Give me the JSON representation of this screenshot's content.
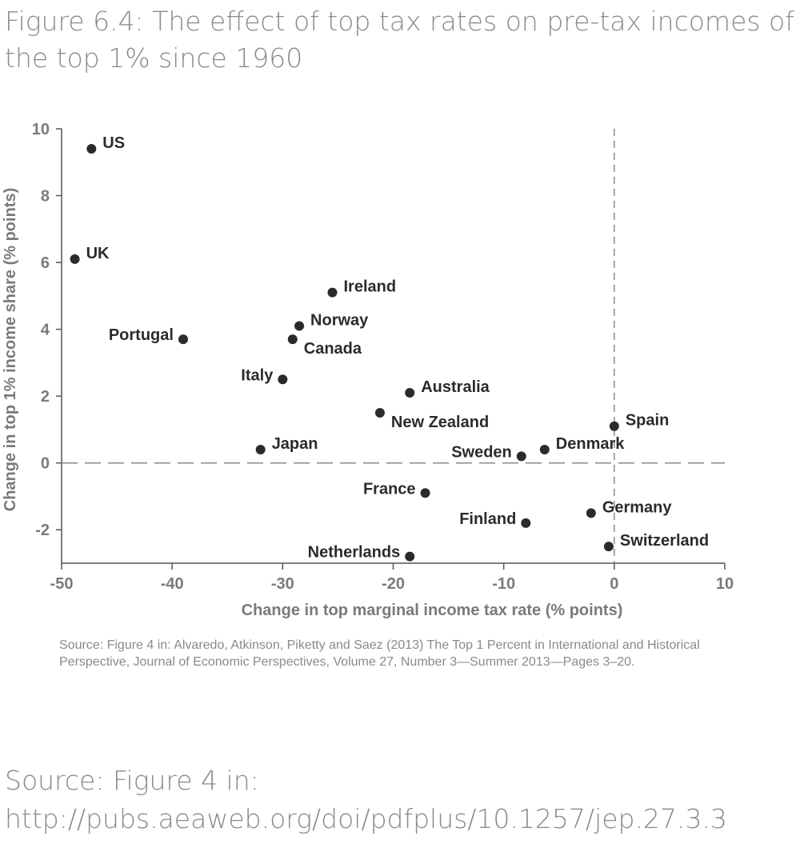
{
  "figure": {
    "title": "Figure 6.4: The effect of top tax rates on pre-tax incomes of the top 1% since 1960",
    "source_note": "Source: Figure 4 in: Alvaredo, Atkinson, Piketty and Saez (2013) The Top 1 Percent in International and Historical Perspective, Journal of Economic Perspectives, Volume 27, Number 3—Summer 2013—Pages 3–20."
  },
  "page_source": {
    "line1": "Source: Figure 4 in:",
    "line2": "http://pubs.aeaweb.org/doi/pdfplus/10.1257/jep.27.3.3"
  },
  "colors": {
    "axis_text": "#7a7a7a",
    "points": "#2b2b2b",
    "labels": "#2b2b2b",
    "reference_lines": "#8a8a8a"
  },
  "chart_data": {
    "type": "scatter",
    "title": "",
    "xlabel": "Change in top marginal income tax rate (% points)",
    "ylabel": "Change in top 1% income share (% points)",
    "xlim": [
      -50,
      10
    ],
    "ylim": [
      -3,
      10
    ],
    "xticks": [
      -50,
      -40,
      -30,
      -20,
      -10,
      0,
      10
    ],
    "yticks": [
      -2,
      0,
      2,
      4,
      6,
      8,
      10
    ],
    "grid": false,
    "reference_lines": {
      "x": 0,
      "y": 0,
      "style": "dashed"
    },
    "points": [
      {
        "label": "US",
        "x": -47.3,
        "y": 9.4,
        "label_pos": "right"
      },
      {
        "label": "UK",
        "x": -48.8,
        "y": 6.1,
        "label_pos": "right"
      },
      {
        "label": "Ireland",
        "x": -25.5,
        "y": 5.1,
        "label_pos": "right"
      },
      {
        "label": "Norway",
        "x": -28.5,
        "y": 4.1,
        "label_pos": "right"
      },
      {
        "label": "Portugal",
        "x": -39.0,
        "y": 3.7,
        "label_pos": "left"
      },
      {
        "label": "Canada",
        "x": -29.1,
        "y": 3.7,
        "label_pos": "below-right"
      },
      {
        "label": "Italy",
        "x": -30.0,
        "y": 2.5,
        "label_pos": "left"
      },
      {
        "label": "Australia",
        "x": -18.5,
        "y": 2.1,
        "label_pos": "right"
      },
      {
        "label": "New Zealand",
        "x": -21.2,
        "y": 1.5,
        "label_pos": "below-right"
      },
      {
        "label": "Spain",
        "x": 0.0,
        "y": 1.1,
        "label_pos": "right"
      },
      {
        "label": "Japan",
        "x": -32.0,
        "y": 0.4,
        "label_pos": "right"
      },
      {
        "label": "Sweden",
        "x": -8.4,
        "y": 0.2,
        "label_pos": "left"
      },
      {
        "label": "Denmark",
        "x": -6.3,
        "y": 0.4,
        "label_pos": "right"
      },
      {
        "label": "France",
        "x": -17.1,
        "y": -0.9,
        "label_pos": "left"
      },
      {
        "label": "Germany",
        "x": -2.1,
        "y": -1.5,
        "label_pos": "right"
      },
      {
        "label": "Finland",
        "x": -8.0,
        "y": -1.8,
        "label_pos": "left"
      },
      {
        "label": "Switzerland",
        "x": -0.5,
        "y": -2.5,
        "label_pos": "right"
      },
      {
        "label": "Netherlands",
        "x": -18.5,
        "y": -2.8,
        "label_pos": "left"
      }
    ]
  }
}
